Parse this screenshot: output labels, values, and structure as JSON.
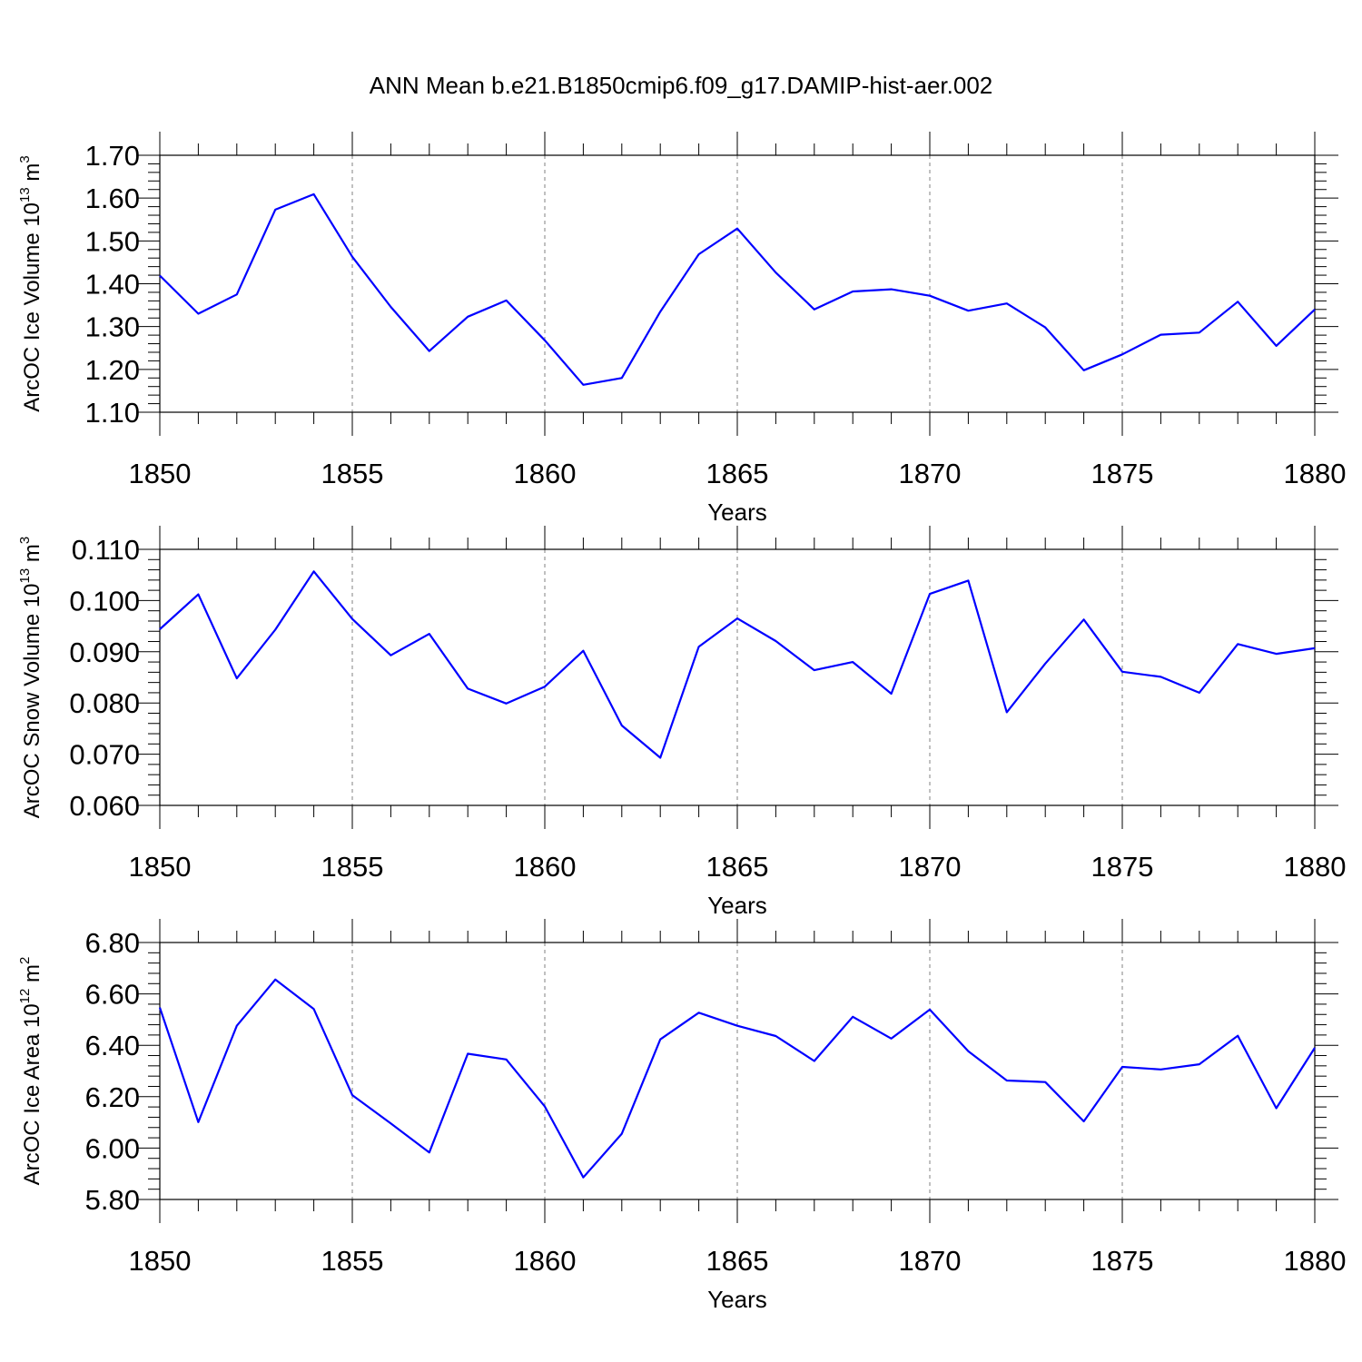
{
  "title": "ANN Mean b.e21.B1850cmip6.f09_g17.DAMIP-hist-aer.002",
  "colors": {
    "line": "#0000ff",
    "axis": "#000000",
    "grid": "#808080"
  },
  "chart_data": [
    {
      "type": "line",
      "ylabel_main": "ArcOC Ice Volume 10",
      "ylabel_exp": "13",
      "ylabel_unit": " m",
      "ylabel_unit_exp": "3",
      "xlabel": "Years",
      "xlim": [
        1850,
        1880
      ],
      "ylim": [
        1.1,
        1.7
      ],
      "yticks": [
        "1.10",
        "1.20",
        "1.30",
        "1.40",
        "1.50",
        "1.60",
        "1.70"
      ],
      "xticks": [
        "1850",
        "1855",
        "1860",
        "1865",
        "1870",
        "1875",
        "1880"
      ],
      "x": [
        1850,
        1851,
        1852,
        1853,
        1854,
        1855,
        1856,
        1857,
        1858,
        1859,
        1860,
        1861,
        1862,
        1863,
        1864,
        1865,
        1866,
        1867,
        1868,
        1869,
        1870,
        1871,
        1872,
        1873,
        1874,
        1875,
        1876,
        1877,
        1878,
        1879,
        1880
      ],
      "values": [
        1.419,
        1.33,
        1.375,
        1.573,
        1.609,
        1.463,
        1.346,
        1.243,
        1.323,
        1.361,
        1.268,
        1.164,
        1.18,
        1.335,
        1.469,
        1.529,
        1.426,
        1.34,
        1.382,
        1.387,
        1.372,
        1.337,
        1.354,
        1.298,
        1.198,
        1.235,
        1.281,
        1.286,
        1.358,
        1.255,
        1.34
      ]
    },
    {
      "type": "line",
      "ylabel_main": "ArcOC Snow Volume 10",
      "ylabel_exp": "13",
      "ylabel_unit": " m",
      "ylabel_unit_exp": "3",
      "xlabel": "Years",
      "xlim": [
        1850,
        1880
      ],
      "ylim": [
        0.06,
        0.11
      ],
      "yticks": [
        "0.060",
        "0.070",
        "0.080",
        "0.090",
        "0.100",
        "0.110"
      ],
      "xticks": [
        "1850",
        "1855",
        "1860",
        "1865",
        "1870",
        "1875",
        "1880"
      ],
      "x": [
        1850,
        1851,
        1852,
        1853,
        1854,
        1855,
        1856,
        1857,
        1858,
        1859,
        1860,
        1861,
        1862,
        1863,
        1864,
        1865,
        1866,
        1867,
        1868,
        1869,
        1870,
        1871,
        1872,
        1873,
        1874,
        1875,
        1876,
        1877,
        1878,
        1879,
        1880
      ],
      "values": [
        0.0944,
        0.1012,
        0.0848,
        0.0943,
        0.1057,
        0.0964,
        0.0893,
        0.0935,
        0.0828,
        0.0799,
        0.0832,
        0.0902,
        0.0756,
        0.0693,
        0.091,
        0.0965,
        0.0921,
        0.0864,
        0.088,
        0.0818,
        0.1013,
        0.1039,
        0.0782,
        0.0877,
        0.0963,
        0.0861,
        0.0851,
        0.082,
        0.0915,
        0.0896,
        0.0907
      ]
    },
    {
      "type": "line",
      "ylabel_main": "ArcOC Ice Area 10",
      "ylabel_exp": "12",
      "ylabel_unit": " m",
      "ylabel_unit_exp": "2",
      "xlabel": "Years",
      "xlim": [
        1850,
        1880
      ],
      "ylim": [
        5.8,
        6.8
      ],
      "yticks": [
        "5.80",
        "6.00",
        "6.20",
        "6.40",
        "6.60",
        "6.80"
      ],
      "xticks": [
        "1850",
        "1855",
        "1860",
        "1865",
        "1870",
        "1875",
        "1880"
      ],
      "x": [
        1850,
        1851,
        1852,
        1853,
        1854,
        1855,
        1856,
        1857,
        1858,
        1859,
        1860,
        1861,
        1862,
        1863,
        1864,
        1865,
        1866,
        1867,
        1868,
        1869,
        1870,
        1871,
        1872,
        1873,
        1874,
        1875,
        1876,
        1877,
        1878,
        1879,
        1880
      ],
      "values": [
        6.547,
        6.101,
        6.476,
        6.656,
        6.541,
        6.206,
        6.096,
        5.983,
        6.367,
        6.345,
        6.162,
        5.886,
        6.056,
        6.423,
        6.527,
        6.476,
        6.436,
        6.339,
        6.511,
        6.426,
        6.539,
        6.377,
        6.263,
        6.257,
        6.104,
        6.316,
        6.306,
        6.326,
        6.437,
        6.155,
        6.39
      ]
    }
  ]
}
